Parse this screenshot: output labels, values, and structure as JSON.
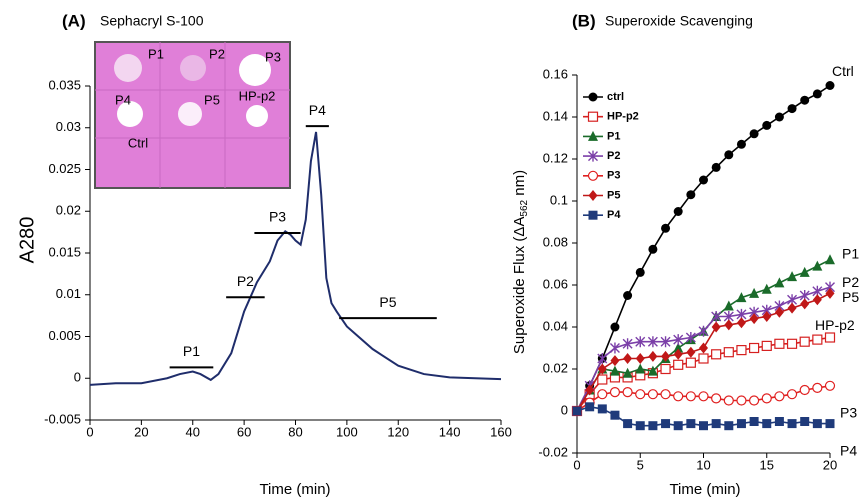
{
  "chart_data": [
    {
      "type": "line",
      "title_tag": "(A)",
      "title": "Sephacryl S-100",
      "x_label": "Time (min)",
      "y_label": "A280",
      "xlim": [
        0,
        160
      ],
      "xticks": [
        0,
        20,
        40,
        60,
        80,
        100,
        120,
        140,
        160
      ],
      "ylim": [
        -0.005,
        0.035
      ],
      "yticks": [
        -0.005,
        0,
        0.005,
        0.01,
        0.015,
        0.02,
        0.025,
        0.03,
        0.035
      ],
      "series": [
        {
          "color": "#1f2d6b",
          "x": [
            0,
            10,
            20,
            30,
            35,
            40,
            43,
            47,
            50,
            55,
            60,
            65,
            70,
            73,
            76,
            78,
            80,
            82,
            84,
            86,
            88,
            90,
            92,
            94,
            96,
            100,
            110,
            120,
            130,
            140,
            150,
            160
          ],
          "values": [
            -0.0008,
            -0.0006,
            -0.0006,
            0.0,
            0.0005,
            0.0008,
            0.0005,
            -0.0002,
            0.0005,
            0.003,
            0.008,
            0.0115,
            0.014,
            0.0165,
            0.0176,
            0.0172,
            0.0165,
            0.016,
            0.019,
            0.026,
            0.0295,
            0.022,
            0.012,
            0.009,
            0.008,
            0.0062,
            0.0035,
            0.0015,
            0.0005,
            0.0001,
            0.0,
            -0.0001
          ]
        }
      ],
      "annotations": [
        {
          "text": "P1",
          "x": [
            31,
            48
          ],
          "y": 0.0013
        },
        {
          "text": "P2",
          "x": [
            53,
            68
          ],
          "y": 0.0097
        },
        {
          "text": "P3",
          "x": [
            64,
            82
          ],
          "y": 0.0174
        },
        {
          "text": "P4",
          "x": [
            84,
            93
          ],
          "y": 0.0302
        },
        {
          "text": "P5",
          "x": [
            97,
            135
          ],
          "y": 0.0072
        }
      ],
      "inset_labels": [
        "P1",
        "P2",
        "P3",
        "P4",
        "P5",
        "HP-p2",
        "Ctrl"
      ]
    },
    {
      "type": "line",
      "title_tag": "(B)",
      "title": "Superoxide Scavenging",
      "x_label": "Time (min)",
      "y_label": "Superoxide Flux  (ΔA",
      "y_label_sub": "562",
      "y_label_end": " nm)",
      "xlim": [
        0,
        20
      ],
      "xticks": [
        0,
        5,
        10,
        15,
        20
      ],
      "ylim": [
        -0.02,
        0.16
      ],
      "yticks": [
        -0.02,
        0,
        0.02,
        0.04,
        0.06,
        0.08,
        0.1,
        0.12,
        0.14,
        0.16
      ],
      "legend": "upper-left",
      "series": [
        {
          "name": "ctrl",
          "end_label": "Ctrl",
          "color": "#000000",
          "marker": "circle",
          "x": [
            0,
            1,
            2,
            3,
            4,
            5,
            6,
            7,
            8,
            9,
            10,
            11,
            12,
            13,
            14,
            15,
            16,
            17,
            18,
            19,
            20
          ],
          "values": [
            0,
            0.012,
            0.025,
            0.04,
            0.055,
            0.066,
            0.077,
            0.087,
            0.095,
            0.103,
            0.11,
            0.116,
            0.122,
            0.127,
            0.132,
            0.136,
            0.14,
            0.144,
            0.148,
            0.151,
            0.155
          ]
        },
        {
          "name": "HP-p2",
          "end_label": "HP-p2",
          "color": "#d62020",
          "marker": "square-open",
          "x": [
            0,
            1,
            2,
            3,
            4,
            5,
            6,
            7,
            8,
            9,
            10,
            11,
            12,
            13,
            14,
            15,
            16,
            17,
            18,
            19,
            20
          ],
          "values": [
            0,
            0.008,
            0.015,
            0.016,
            0.016,
            0.017,
            0.018,
            0.02,
            0.022,
            0.023,
            0.025,
            0.027,
            0.028,
            0.029,
            0.03,
            0.031,
            0.032,
            0.032,
            0.033,
            0.034,
            0.035
          ]
        },
        {
          "name": "P1",
          "end_label": "P1",
          "color": "#1a6b2a",
          "marker": "triangle",
          "x": [
            0,
            1,
            2,
            3,
            4,
            5,
            6,
            7,
            8,
            9,
            10,
            11,
            12,
            13,
            14,
            15,
            16,
            17,
            18,
            19,
            20
          ],
          "values": [
            0,
            0.01,
            0.02,
            0.019,
            0.018,
            0.02,
            0.019,
            0.025,
            0.03,
            0.034,
            0.038,
            0.045,
            0.05,
            0.054,
            0.056,
            0.058,
            0.061,
            0.064,
            0.066,
            0.069,
            0.072
          ]
        },
        {
          "name": "P2",
          "end_label": "P2",
          "color": "#7b3fa8",
          "marker": "star",
          "x": [
            0,
            1,
            2,
            3,
            4,
            5,
            6,
            7,
            8,
            9,
            10,
            11,
            12,
            13,
            14,
            15,
            16,
            17,
            18,
            19,
            20
          ],
          "values": [
            0,
            0.012,
            0.025,
            0.03,
            0.032,
            0.033,
            0.033,
            0.033,
            0.034,
            0.035,
            0.038,
            0.045,
            0.045,
            0.046,
            0.047,
            0.048,
            0.05,
            0.053,
            0.055,
            0.057,
            0.059
          ]
        },
        {
          "name": "P3",
          "end_label": "P3",
          "color": "#e02020",
          "marker": "circle-open",
          "x": [
            0,
            1,
            2,
            3,
            4,
            5,
            6,
            7,
            8,
            9,
            10,
            11,
            12,
            13,
            14,
            15,
            16,
            17,
            18,
            19,
            20
          ],
          "values": [
            0,
            0.004,
            0.008,
            0.009,
            0.009,
            0.008,
            0.008,
            0.008,
            0.007,
            0.007,
            0.007,
            0.006,
            0.005,
            0.005,
            0.005,
            0.006,
            0.007,
            0.008,
            0.01,
            0.011,
            0.012
          ]
        },
        {
          "name": "P5",
          "end_label": "P5",
          "color": "#c01818",
          "marker": "diamond",
          "x": [
            0,
            1,
            2,
            3,
            4,
            5,
            6,
            7,
            8,
            9,
            10,
            11,
            12,
            13,
            14,
            15,
            16,
            17,
            18,
            19,
            20
          ],
          "values": [
            0,
            0.01,
            0.02,
            0.024,
            0.025,
            0.025,
            0.026,
            0.026,
            0.027,
            0.028,
            0.03,
            0.04,
            0.041,
            0.042,
            0.044,
            0.045,
            0.047,
            0.049,
            0.051,
            0.053,
            0.056
          ]
        },
        {
          "name": "P4",
          "end_label": "P4",
          "color": "#1f3a7a",
          "marker": "square",
          "x": [
            0,
            1,
            2,
            3,
            4,
            5,
            6,
            7,
            8,
            9,
            10,
            11,
            12,
            13,
            14,
            15,
            16,
            17,
            18,
            19,
            20
          ],
          "values": [
            0,
            0.002,
            0.001,
            -0.002,
            -0.006,
            -0.007,
            -0.007,
            -0.006,
            -0.007,
            -0.006,
            -0.007,
            -0.006,
            -0.007,
            -0.006,
            -0.005,
            -0.006,
            -0.005,
            -0.006,
            -0.005,
            -0.006,
            -0.006
          ]
        }
      ]
    }
  ]
}
